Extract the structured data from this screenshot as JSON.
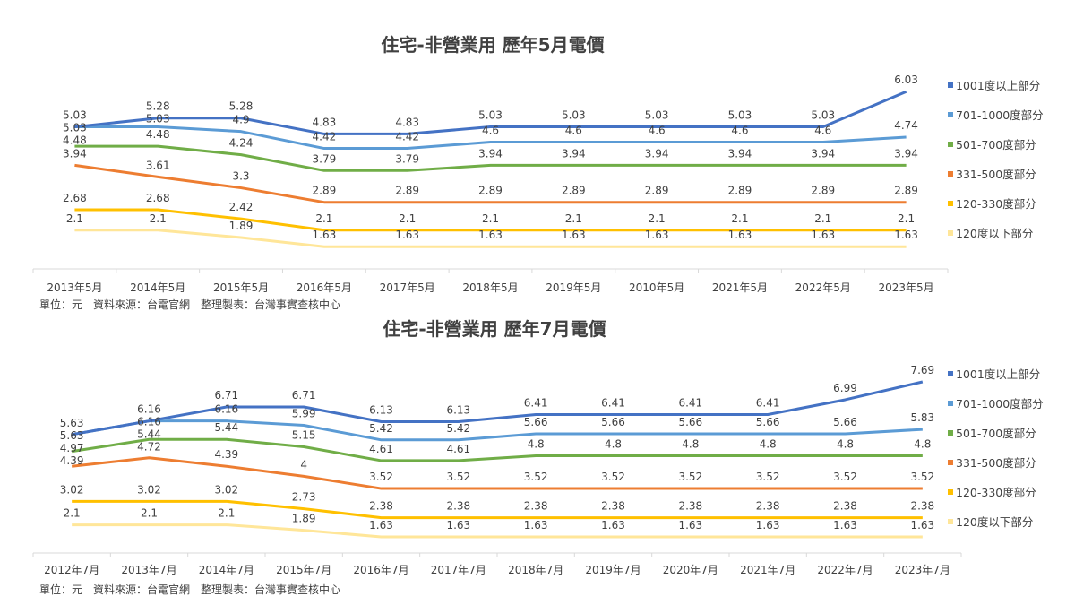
{
  "chart_data": [
    {
      "type": "line",
      "title": "住宅-非營業用 歷年5月電價",
      "footer": "單位：元　資料來源：台電官網　整理製表：台灣事實查核中心",
      "categories": [
        "2013年5月",
        "2014年5月",
        "2015年5月",
        "2016年5月",
        "2017年5月",
        "2018年5月",
        "2019年5月",
        "2010年5月",
        "2021年5月",
        "2022年5月",
        "2023年5月"
      ],
      "ylim": [
        1,
        6.85
      ],
      "grid": false,
      "legend": "right",
      "data_labels": true,
      "series": [
        {
          "name": "1001度以上部分",
          "color": "#4472c4",
          "values": [
            5.03,
            5.28,
            5.28,
            4.83,
            4.83,
            5.03,
            5.03,
            5.03,
            5.03,
            5.03,
            6.03
          ]
        },
        {
          "name": "701-1000度部分",
          "color": "#5b9bd5",
          "values": [
            5.03,
            5.03,
            4.9,
            4.42,
            4.42,
            4.6,
            4.6,
            4.6,
            4.6,
            4.6,
            4.74
          ]
        },
        {
          "name": "501-700度部分",
          "color": "#70ad47",
          "values": [
            4.48,
            4.48,
            4.24,
            3.79,
            3.79,
            3.94,
            3.94,
            3.94,
            3.94,
            3.94,
            3.94
          ]
        },
        {
          "name": "331-500度部分",
          "color": "#ed7d31",
          "values": [
            3.94,
            3.61,
            3.3,
            2.89,
            2.89,
            2.89,
            2.89,
            2.89,
            2.89,
            2.89,
            2.89
          ]
        },
        {
          "name": "120-330度部分",
          "color": "#ffc000",
          "values": [
            2.68,
            2.68,
            2.42,
            2.1,
            2.1,
            2.1,
            2.1,
            2.1,
            2.1,
            2.1,
            2.1
          ]
        },
        {
          "name": "120度以下部分",
          "color": "#ffe699",
          "values": [
            2.1,
            2.1,
            1.89,
            1.63,
            1.63,
            1.63,
            1.63,
            1.63,
            1.63,
            1.63,
            1.63
          ]
        }
      ]
    },
    {
      "type": "line",
      "title": "住宅-非營業用 歷年7月電價",
      "footer": "單位：元　資料來源：台電官網　整理製表：台灣事實查核中心",
      "categories": [
        "2012年7月",
        "2013年7月",
        "2014年7月",
        "2015年7月",
        "2016年7月",
        "2017年7月",
        "2018年7月",
        "2019年7月",
        "2020年7月",
        "2021年7月",
        "2022年7月",
        "2023年7月"
      ],
      "ylim": [
        1,
        8.6
      ],
      "grid": false,
      "legend": "right",
      "data_labels": true,
      "series": [
        {
          "name": "1001度以上部分",
          "color": "#4472c4",
          "values": [
            5.63,
            6.16,
            6.71,
            6.71,
            6.13,
            6.13,
            6.41,
            6.41,
            6.41,
            6.41,
            6.99,
            7.69
          ]
        },
        {
          "name": "701-1000度部分",
          "color": "#5b9bd5",
          "values": [
            5.63,
            6.16,
            6.16,
            5.99,
            5.42,
            5.42,
            5.66,
            5.66,
            5.66,
            5.66,
            5.66,
            5.83
          ]
        },
        {
          "name": "501-700度部分",
          "color": "#70ad47",
          "values": [
            4.97,
            5.44,
            5.44,
            5.15,
            4.61,
            4.61,
            4.8,
            4.8,
            4.8,
            4.8,
            4.8,
            4.8
          ]
        },
        {
          "name": "331-500度部分",
          "color": "#ed7d31",
          "values": [
            4.39,
            4.72,
            4.39,
            4,
            3.52,
            3.52,
            3.52,
            3.52,
            3.52,
            3.52,
            3.52,
            3.52
          ]
        },
        {
          "name": "120-330度部分",
          "color": "#ffc000",
          "values": [
            3.02,
            3.02,
            3.02,
            2.73,
            2.38,
            2.38,
            2.38,
            2.38,
            2.38,
            2.38,
            2.38,
            2.38
          ]
        },
        {
          "name": "120度以下部分",
          "color": "#ffe699",
          "values": [
            2.1,
            2.1,
            2.1,
            1.89,
            1.63,
            1.63,
            1.63,
            1.63,
            1.63,
            1.63,
            1.63,
            1.63
          ]
        }
      ]
    }
  ]
}
